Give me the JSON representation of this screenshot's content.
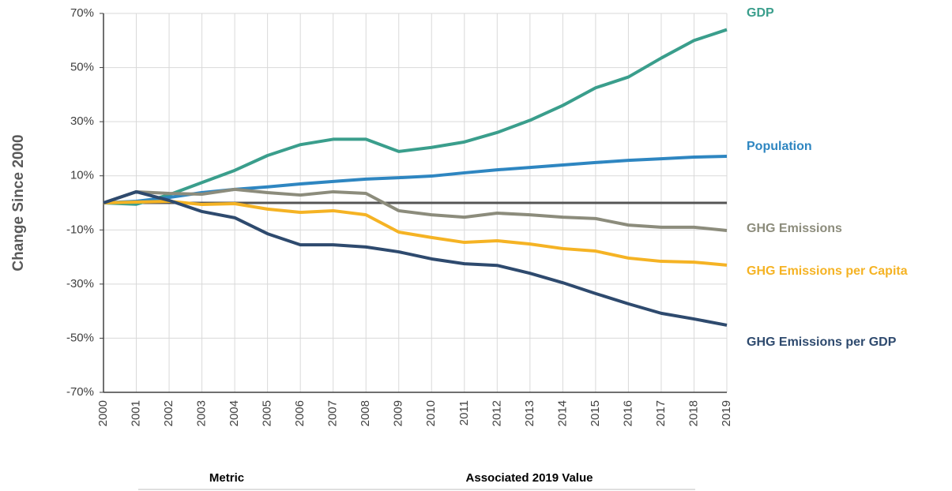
{
  "chart_data": {
    "type": "line",
    "ylabel": "Change Since 2000",
    "categories": [
      "2000",
      "2001",
      "2002",
      "2003",
      "2004",
      "2005",
      "2006",
      "2007",
      "2008",
      "2009",
      "2010",
      "2011",
      "2012",
      "2013",
      "2014",
      "2015",
      "2016",
      "2017",
      "2018",
      "2019"
    ],
    "series": [
      {
        "name": "GDP",
        "color": "#3a9e8c",
        "values": [
          0,
          -0.5,
          3,
          7.5,
          12,
          17.5,
          21.5,
          23.5,
          23.5,
          19,
          20.5,
          22.5,
          26,
          30.5,
          36,
          42.5,
          46.5,
          53.5,
          60,
          64
        ]
      },
      {
        "name": "Population",
        "color": "#2e86c1",
        "values": [
          0,
          0.6,
          2,
          3.8,
          5,
          5.9,
          7,
          7.9,
          8.8,
          9.3,
          9.9,
          11.1,
          12.2,
          13.1,
          14,
          14.9,
          15.7,
          16.3,
          16.9,
          17.2
        ]
      },
      {
        "name": "GHG Emissions",
        "color": "#8c8c7c",
        "values": [
          0,
          4.1,
          3.5,
          3.2,
          5,
          3.8,
          2.9,
          4.1,
          3.5,
          -2.9,
          -4.4,
          -5.3,
          -3.8,
          -4.4,
          -5.3,
          -5.8,
          -8.2,
          -9,
          -9,
          -10.2
        ]
      },
      {
        "name": "GHG Emissions per Capita",
        "color": "#f5b324",
        "values": [
          0,
          0.3,
          0.6,
          -0.6,
          -0.3,
          -2.3,
          -3.5,
          -2.9,
          -4.4,
          -10.8,
          -12.8,
          -14.6,
          -14,
          -15.2,
          -16.9,
          -17.8,
          -20.4,
          -21.6,
          -21.9,
          -23
        ]
      },
      {
        "name": "GHG Emissions per GDP",
        "color": "#2e4a6e",
        "values": [
          0,
          4.1,
          0.9,
          -3.2,
          -5.5,
          -11.4,
          -15.5,
          -15.5,
          -16.3,
          -18.1,
          -20.7,
          -22.5,
          -23.1,
          -26,
          -29.5,
          -33.5,
          -37.3,
          -40.8,
          -42.9,
          -45.2
        ]
      }
    ],
    "ylim": [
      -70,
      70
    ],
    "yticks": [
      {
        "value": -70,
        "label": "-70%"
      },
      {
        "value": -50,
        "label": "-50%"
      },
      {
        "value": -30,
        "label": "-30%"
      },
      {
        "value": -10,
        "label": "-10%"
      },
      {
        "value": 10,
        "label": "10%"
      },
      {
        "value": 30,
        "label": "30%"
      },
      {
        "value": 50,
        "label": "50%"
      },
      {
        "value": 70,
        "label": "70%"
      }
    ],
    "grid": true
  },
  "table_header": {
    "columns": [
      "Metric",
      "Associated 2019 Value"
    ]
  }
}
